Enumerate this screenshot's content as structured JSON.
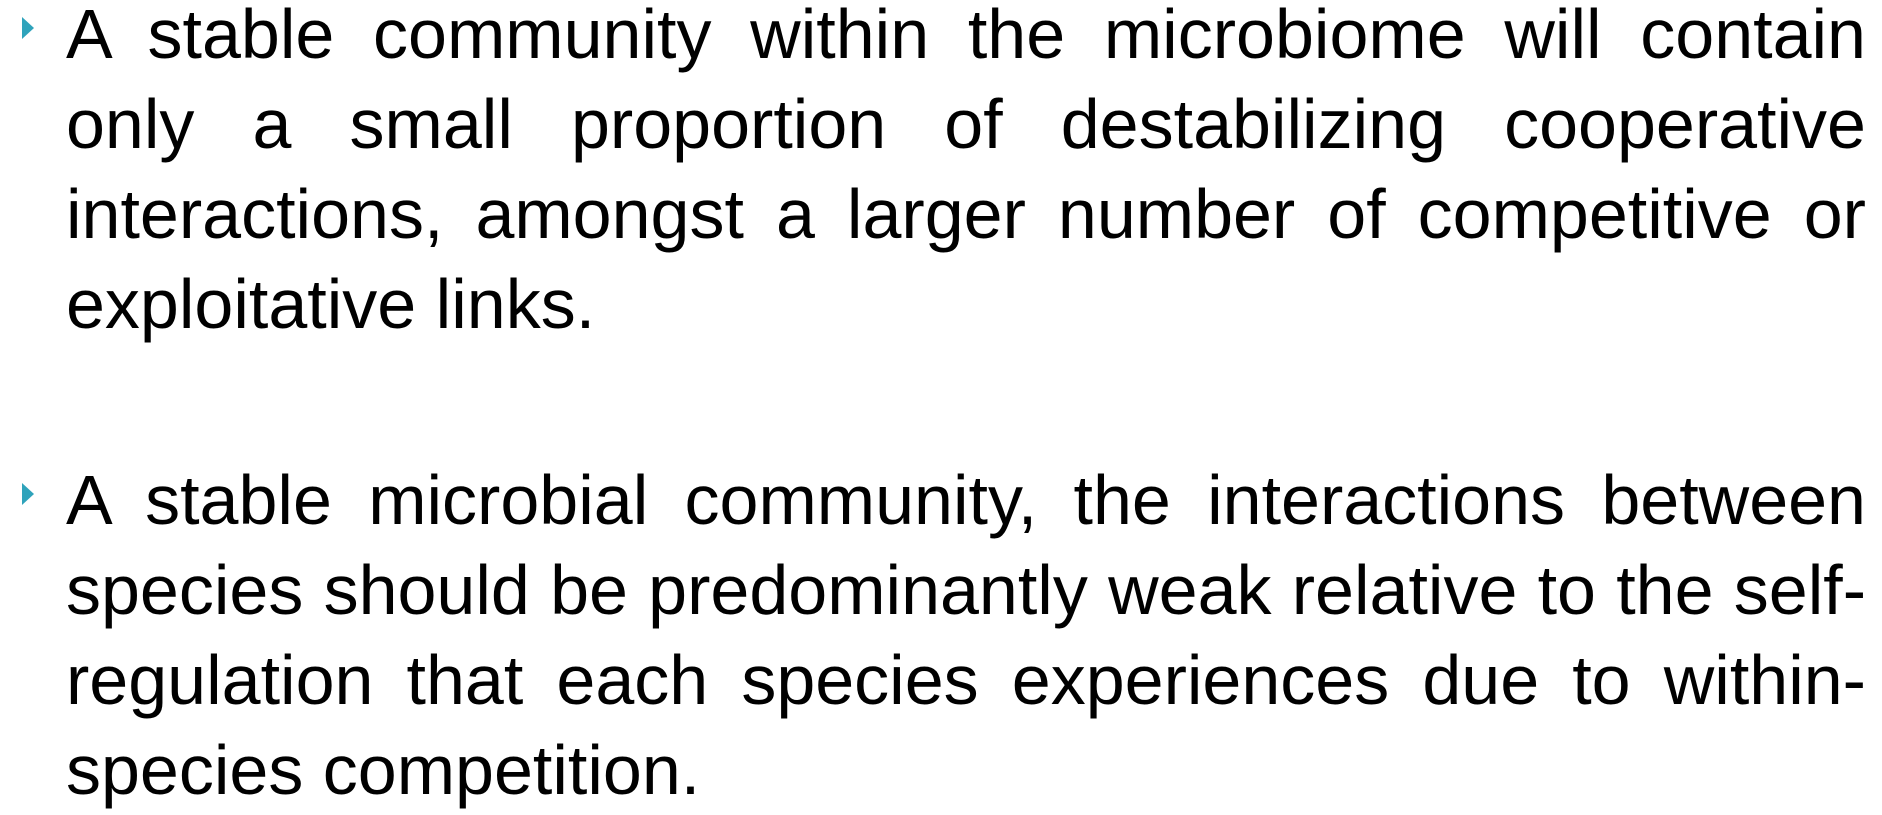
{
  "bullets": [
    "A stable community within the microbiome will contain only a small proportion of destabilizing cooperative interactions, amongst a larger number of competitive or exploitative links.",
    "A stable microbial community, the interactions between species should be predominantly weak relative to the self-regulation that each species experiences due to within-species competition."
  ]
}
